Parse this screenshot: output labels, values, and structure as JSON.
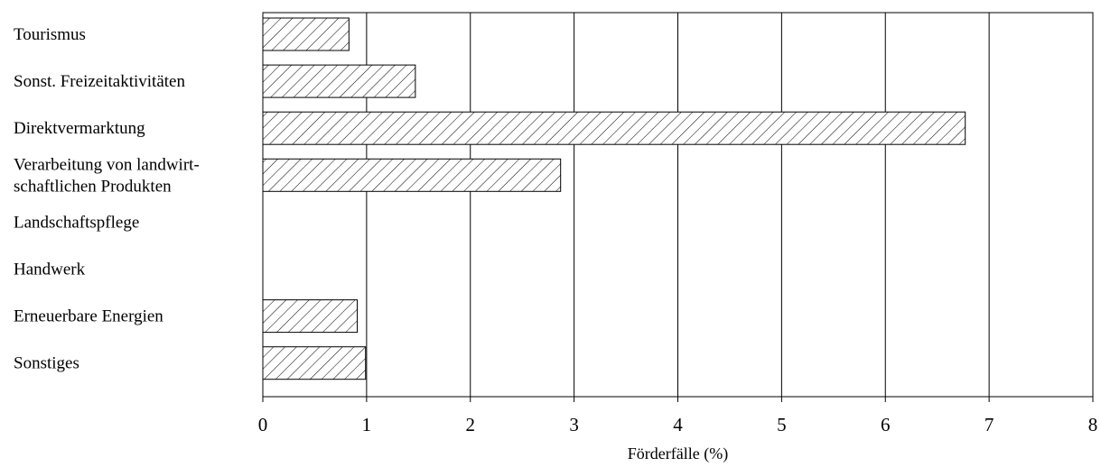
{
  "chart_data": {
    "type": "bar",
    "orientation": "horizontal",
    "categories": [
      [
        "Tourismus"
      ],
      [
        "Sonst. Freizeitaktivitäten"
      ],
      [
        "Direktvermarktung"
      ],
      [
        "Verarbeitung von landwirt-",
        "schaftlichen Produkten"
      ],
      [
        "Landschaftspflege"
      ],
      [
        "Handwerk"
      ],
      [
        "Erneuerbare Energien"
      ],
      [
        "Sonstiges"
      ]
    ],
    "values": [
      0.83,
      1.47,
      6.77,
      2.87,
      0,
      0,
      0.91,
      0.99
    ],
    "xlabel": "Förderfälle (%)",
    "ylabel": "",
    "xlim": [
      0,
      8
    ],
    "xticks": [
      0,
      1,
      2,
      3,
      4,
      5,
      6,
      7,
      8
    ],
    "grid": "vertical",
    "bar_fill": "diagonal-hatch",
    "colors": {
      "bar_stroke": "#000000",
      "grid": "#000000",
      "background": "#ffffff"
    }
  }
}
